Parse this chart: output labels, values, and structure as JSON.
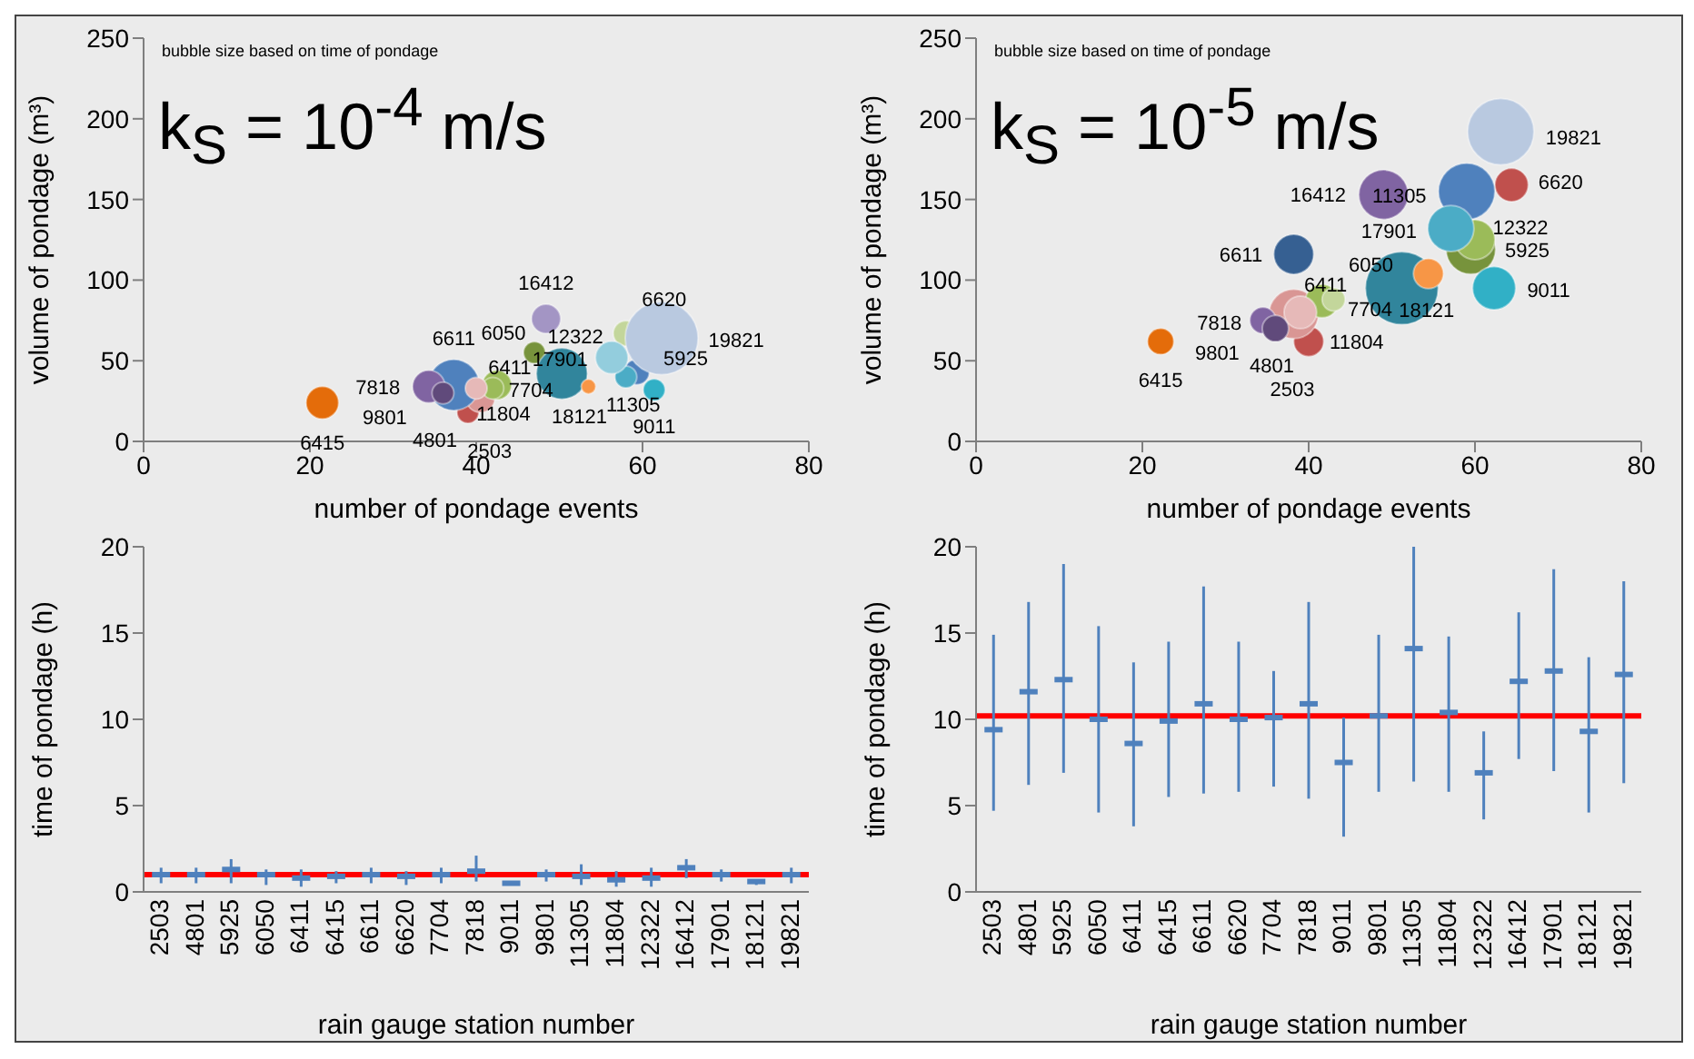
{
  "chart_data": [
    {
      "type": "bubble",
      "title": "k$_{S}$ = 10$^{-4}$ m/s",
      "xlabel": "number of pondage events",
      "ylabel": "volume of pondage (m³)",
      "xlim": [
        0,
        80
      ],
      "xticks": [
        0,
        20,
        40,
        60,
        80
      ],
      "ylim": [
        0,
        250
      ],
      "yticks": [
        0,
        50,
        100,
        150,
        200,
        250
      ],
      "x": [
        39,
        40.5,
        59.3,
        47,
        42.5,
        21.5,
        37.3,
        58,
        42,
        34.3,
        61.4,
        36,
        58,
        40,
        56.3,
        48.4,
        50.3,
        53.5,
        62.3
      ],
      "values": [
        18,
        27,
        43,
        55,
        35,
        24,
        35,
        67,
        33,
        34,
        32,
        30,
        40,
        33,
        52,
        76,
        42,
        34,
        64
      ],
      "sizes": [
        0.09,
        0.16,
        0.12,
        0.09,
        0.16,
        0.2,
        0.49,
        0.12,
        0.09,
        0.2,
        0.09,
        0.09,
        0.09,
        0.09,
        0.2,
        0.16,
        0.49,
        0.04,
        1
      ],
      "colors": [
        "#c0504d",
        "#d99694",
        "#4f81bd",
        "#77933c",
        "#9bbb59",
        "#e46c0a",
        "#4f81bd",
        "#c3d69b",
        "#9bbb59",
        "#8064a2",
        "#31b0c6",
        "#604a7b",
        "#4bacc6",
        "#e6b9b8",
        "#93cddd",
        "#a395c4",
        "#31859c",
        "#f79646",
        "#b9c9e0"
      ],
      "annotations": [
        "bubble size based on time of pondage",
        {
          "text": "2503",
          "x": 39,
          "y": 18
        },
        {
          "text": "4801",
          "x": 40.5,
          "y": 27
        },
        {
          "text": "5925",
          "x": 59.3,
          "y": 43
        },
        {
          "text": "6050",
          "x": 47,
          "y": 55
        },
        {
          "text": "6411",
          "x": 42.5,
          "y": 35
        },
        {
          "text": "6415",
          "x": 21.5,
          "y": 24
        },
        {
          "text": "6611",
          "x": 37.3,
          "y": 35
        },
        {
          "text": "6620",
          "x": 58,
          "y": 67
        },
        {
          "text": "7704",
          "x": 42,
          "y": 33
        },
        {
          "text": "7818",
          "x": 34.3,
          "y": 34
        },
        {
          "text": "9011",
          "x": 61.4,
          "y": 32
        },
        {
          "text": "9801",
          "x": 36,
          "y": 30
        },
        {
          "text": "11305",
          "x": 58,
          "y": 40
        },
        {
          "text": "11804",
          "x": 40,
          "y": 33
        },
        {
          "text": "12322",
          "x": 56.3,
          "y": 52
        },
        {
          "text": "16412",
          "x": 48.4,
          "y": 76
        },
        {
          "text": "17901",
          "x": 50.3,
          "y": 42
        },
        {
          "text": "18121",
          "x": 53.5,
          "y": 34
        },
        {
          "text": "19821",
          "x": 62.3,
          "y": 64
        }
      ]
    },
    {
      "type": "bubble",
      "title": "k$_{S}$ = 10$^{-5}$ m/s",
      "xlabel": "number of pondage events",
      "ylabel": "volume of pondage (m³)",
      "xlim": [
        0,
        80
      ],
      "xticks": [
        0,
        20,
        40,
        60,
        80
      ],
      "ylim": [
        0,
        250
      ],
      "yticks": [
        0,
        50,
        100,
        150,
        200,
        250
      ],
      "x": [
        40,
        38.2,
        59.5,
        51.2,
        41.6,
        22.2,
        38.2,
        64.4,
        43,
        34.5,
        62.3,
        36,
        59,
        39,
        60,
        49,
        57.1,
        54.4,
        63.1
      ],
      "values": [
        62,
        79,
        119,
        95,
        87,
        62,
        116,
        159,
        88,
        75,
        95,
        70,
        155,
        80,
        125,
        153,
        132,
        104,
        192
      ],
      "sizes": [
        0.17,
        0.46,
        0.46,
        1,
        0.21,
        0.13,
        0.3,
        0.21,
        0.1,
        0.13,
        0.35,
        0.13,
        0.6,
        0.2,
        0.3,
        0.46,
        0.4,
        0.17,
        0.83
      ],
      "colors": [
        "#c0504d",
        "#d99694",
        "#77933c",
        "#31859c",
        "#9bbb59",
        "#e46c0a",
        "#366092",
        "#c0504d",
        "#c3d69b",
        "#8064a2",
        "#31b0c6",
        "#604a7b",
        "#4f81bd",
        "#e6b9b8",
        "#9bbb59",
        "#8064a2",
        "#4bacc6",
        "#f79646",
        "#b9c9e0"
      ],
      "annotations": [
        "bubble size based on time of pondage",
        {
          "text": "2503",
          "x": 40,
          "y": 62
        },
        {
          "text": "4801",
          "x": 38.2,
          "y": 79
        },
        {
          "text": "5925",
          "x": 59.5,
          "y": 119
        },
        {
          "text": "6050",
          "x": 51.2,
          "y": 95
        },
        {
          "text": "6411",
          "x": 41.6,
          "y": 87
        },
        {
          "text": "6415",
          "x": 22.2,
          "y": 62
        },
        {
          "text": "6611",
          "x": 38.2,
          "y": 116
        },
        {
          "text": "6620",
          "x": 64.4,
          "y": 159
        },
        {
          "text": "7704",
          "x": 43,
          "y": 88
        },
        {
          "text": "7818",
          "x": 34.5,
          "y": 75
        },
        {
          "text": "9011",
          "x": 62.3,
          "y": 95
        },
        {
          "text": "9801",
          "x": 36,
          "y": 70
        },
        {
          "text": "11305",
          "x": 59,
          "y": 155
        },
        {
          "text": "11804",
          "x": 39,
          "y": 80
        },
        {
          "text": "12322",
          "x": 60,
          "y": 125
        },
        {
          "text": "16412",
          "x": 49,
          "y": 153
        },
        {
          "text": "17901",
          "x": 57.1,
          "y": 132
        },
        {
          "text": "18121",
          "x": 54.4,
          "y": 104
        },
        {
          "text": "19821",
          "x": 63.1,
          "y": 192
        }
      ]
    },
    {
      "type": "scatter",
      "xlabel": "rain gauge station number",
      "ylabel": "time of pondage (h)",
      "ylim": [
        0,
        20
      ],
      "yticks": [
        0,
        5,
        10,
        15,
        20
      ],
      "color": "#4f81bd",
      "categories": [
        "2503",
        "4801",
        "5925",
        "6050",
        "6411",
        "6415",
        "6611",
        "6620",
        "7704",
        "7818",
        "9011",
        "9801",
        "11305",
        "11804",
        "12322",
        "16412",
        "17901",
        "18121",
        "19821"
      ],
      "values": [
        1.0,
        1.0,
        1.3,
        1.0,
        0.8,
        0.9,
        1.0,
        0.9,
        1.0,
        1.2,
        0.5,
        1.0,
        0.9,
        0.7,
        0.8,
        1.4,
        1.0,
        0.6,
        1.0
      ],
      "errors": [
        [
          0.5,
          1.4
        ],
        [
          0.5,
          1.4
        ],
        [
          0.5,
          1.9
        ],
        [
          0.4,
          1.3
        ],
        [
          0.3,
          1.3
        ],
        [
          0.5,
          1.2
        ],
        [
          0.5,
          1.4
        ],
        [
          0.4,
          1.2
        ],
        [
          0.5,
          1.4
        ],
        [
          0.6,
          2.1
        ],
        [
          0.4,
          0.6
        ],
        [
          0.6,
          1.3
        ],
        [
          0.4,
          1.6
        ],
        [
          0.3,
          1.2
        ],
        [
          0.3,
          1.4
        ],
        [
          0.8,
          1.9
        ],
        [
          0.6,
          1.3
        ],
        [
          0.4,
          0.7
        ],
        [
          0.5,
          1.4
        ]
      ],
      "ref_lines": [
        {
          "axis": "y",
          "value": 1.0,
          "color": "#ff0000"
        }
      ]
    },
    {
      "type": "scatter",
      "xlabel": "rain gauge station number",
      "ylabel": "time of pondage (h)",
      "ylim": [
        0,
        20
      ],
      "yticks": [
        0,
        5,
        10,
        15,
        20
      ],
      "color": "#4f81bd",
      "categories": [
        "2503",
        "4801",
        "5925",
        "6050",
        "6411",
        "6415",
        "6611",
        "6620",
        "7704",
        "7818",
        "9011",
        "9801",
        "11305",
        "11804",
        "12322",
        "16412",
        "17901",
        "18121",
        "19821"
      ],
      "values": [
        9.4,
        11.6,
        12.3,
        10.0,
        8.6,
        9.9,
        10.9,
        10.0,
        10.1,
        10.9,
        7.5,
        10.2,
        14.1,
        10.4,
        6.9,
        12.2,
        12.8,
        9.3,
        12.6
      ],
      "errors": [
        [
          4.7,
          14.9
        ],
        [
          6.2,
          16.8
        ],
        [
          6.9,
          19.0
        ],
        [
          4.6,
          15.4
        ],
        [
          3.8,
          13.3
        ],
        [
          5.5,
          14.5
        ],
        [
          5.7,
          17.7
        ],
        [
          5.8,
          14.5
        ],
        [
          6.1,
          12.8
        ],
        [
          5.4,
          16.8
        ],
        [
          3.2,
          10.1
        ],
        [
          5.8,
          14.9
        ],
        [
          6.4,
          20
        ],
        [
          5.8,
          14.8
        ],
        [
          4.2,
          9.3
        ],
        [
          7.7,
          16.2
        ],
        [
          7.0,
          18.7
        ],
        [
          4.6,
          13.6
        ],
        [
          6.3,
          18.0
        ]
      ],
      "ref_lines": [
        {
          "axis": "y",
          "value": 10.2,
          "color": "#ff0000"
        }
      ]
    }
  ]
}
